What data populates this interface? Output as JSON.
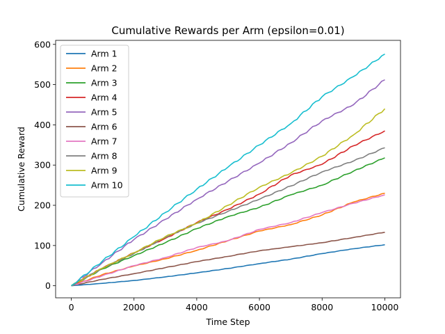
{
  "chart_data": {
    "type": "line",
    "title": "Cumulative Rewards per Arm (epsilon=0.01)",
    "xlabel": "Time Step",
    "ylabel": "Cumulative Reward",
    "xlim": [
      -500,
      10500
    ],
    "ylim": [
      -30,
      610
    ],
    "xticks": [
      0,
      2000,
      4000,
      6000,
      8000,
      10000
    ],
    "yticks": [
      0,
      100,
      200,
      300,
      400,
      500,
      600
    ],
    "grid": false,
    "legend_position": "top-left",
    "x": [
      0,
      1000,
      2000,
      3000,
      4000,
      5000,
      6000,
      7000,
      8000,
      9000,
      10000
    ],
    "series": [
      {
        "name": "Arm 1",
        "color": "#1f77b4",
        "values": [
          0,
          6,
          13,
          22,
          32,
          43,
          55,
          66,
          80,
          92,
          102
        ]
      },
      {
        "name": "Arm 2",
        "color": "#ff7f0e",
        "values": [
          0,
          28,
          49,
          67,
          88,
          112,
          136,
          152,
          176,
          208,
          230
        ]
      },
      {
        "name": "Arm 3",
        "color": "#2ca02c",
        "values": [
          0,
          42,
          75,
          107,
          142,
          172,
          195,
          226,
          250,
          285,
          318
        ]
      },
      {
        "name": "Arm 4",
        "color": "#d62728",
        "values": [
          0,
          44,
          82,
          118,
          157,
          190,
          228,
          275,
          302,
          348,
          385
        ]
      },
      {
        "name": "Arm 5",
        "color": "#9467bd",
        "values": [
          0,
          58,
          115,
          165,
          215,
          260,
          305,
          355,
          410,
          450,
          512
        ]
      },
      {
        "name": "Arm 6",
        "color": "#8c564b",
        "values": [
          0,
          16,
          30,
          45,
          60,
          73,
          87,
          97,
          107,
          120,
          133
        ]
      },
      {
        "name": "Arm 7",
        "color": "#e377c2",
        "values": [
          0,
          25,
          50,
          70,
          95,
          112,
          140,
          157,
          182,
          205,
          226
        ]
      },
      {
        "name": "Arm 8",
        "color": "#7f7f7f",
        "values": [
          0,
          44,
          80,
          120,
          155,
          185,
          215,
          248,
          283,
          310,
          343
        ]
      },
      {
        "name": "Arm 9",
        "color": "#bcbd22",
        "values": [
          0,
          44,
          82,
          122,
          155,
          200,
          245,
          280,
          322,
          375,
          440
        ]
      },
      {
        "name": "Arm 10",
        "color": "#17becf",
        "values": [
          0,
          62,
          122,
          182,
          240,
          295,
          350,
          403,
          470,
          520,
          576
        ]
      }
    ]
  }
}
